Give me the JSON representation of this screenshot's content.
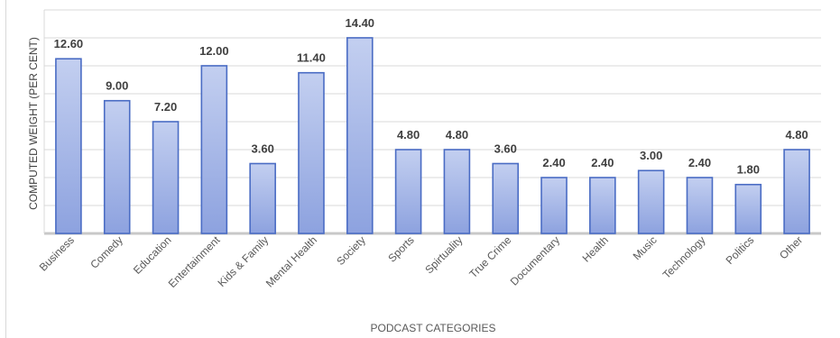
{
  "chart_data": {
    "type": "bar",
    "title": "",
    "xlabel": "PODCAST CATEGORIES",
    "ylabel": "COMPUTED WEIGHT (PER CENT)",
    "ylim": [
      -2.4,
      16.8
    ],
    "yticks": [
      -2.4,
      0,
      2.4,
      4.8,
      7.2,
      9.6,
      12,
      14.4,
      16.8
    ],
    "grid": true,
    "legend": "none",
    "categories": [
      "Business",
      "Comedy",
      "Education",
      "Entertainment",
      "Kids & Family",
      "Mental Health",
      "Society",
      "Sports",
      "Spirtuality",
      "True Crime",
      "Documentary",
      "Health",
      "Music",
      "Technology",
      "Politics",
      "Other"
    ],
    "values": [
      12.6,
      9.0,
      7.2,
      12.0,
      3.6,
      11.4,
      14.4,
      4.8,
      4.8,
      3.6,
      2.4,
      2.4,
      3.0,
      2.4,
      1.8,
      4.8
    ],
    "value_labels": [
      "12.60",
      "9.00",
      "7.20",
      "12.00",
      "3.60",
      "11.40",
      "14.40",
      "4.80",
      "4.80",
      "3.60",
      "2.40",
      "2.40",
      "3.00",
      "2.40",
      "1.80",
      "4.80"
    ],
    "colors": {
      "bar_top": "#c3cff0",
      "bar_bottom": "#8da2df",
      "bar_edge": "#4a6cc4",
      "grid": "#d9d9d9",
      "axis_text": "#595959",
      "label_text": "#404040"
    }
  }
}
